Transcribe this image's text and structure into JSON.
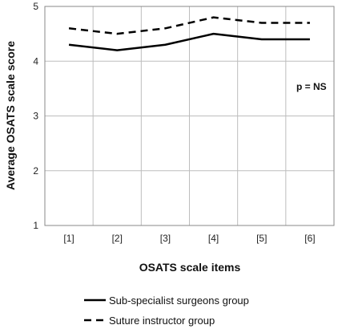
{
  "chart_data": {
    "type": "line",
    "categories": [
      "[1]",
      "[2]",
      "[3]",
      "[4]",
      "[5]",
      "[6]"
    ],
    "series": [
      {
        "name": "Sub-specialist surgeons group",
        "values": [
          4.3,
          4.2,
          4.3,
          4.5,
          4.4,
          4.4
        ],
        "color": "#000000",
        "dash": "solid"
      },
      {
        "name": "Suture instructor group",
        "values": [
          4.6,
          4.5,
          4.6,
          4.8,
          4.7,
          4.7
        ],
        "color": "#000000",
        "dash": "dashed"
      }
    ],
    "xlabel": "OSATS scale items",
    "ylabel": "Average OSATS scale score",
    "ylim": [
      1,
      5
    ],
    "yticks": [
      "1",
      "2",
      "3",
      "4",
      "5"
    ],
    "grid": true,
    "legend_position": "bottom",
    "annotation": "p = NS"
  }
}
